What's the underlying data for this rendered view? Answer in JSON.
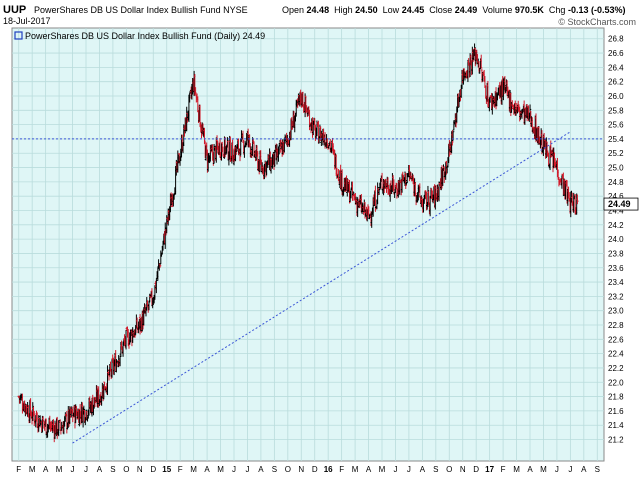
{
  "header": {
    "ticker": "UUP",
    "full_name": "PowerShares DB US Dollar Index Bullish Fund",
    "exchange": "NYSE",
    "date": "18-Jul-2017",
    "open_label": "Open",
    "open": "24.48",
    "high_label": "High",
    "high": "24.50",
    "low_label": "Low",
    "low": "24.45",
    "close_label": "Close",
    "close": "24.49",
    "volume_label": "Volume",
    "volume": "970.5K",
    "chg_label": "Chg",
    "chg": "-0.13 (-0.53%)",
    "logo": "© StockCharts.com"
  },
  "legend": {
    "label": "PowerShares DB US Dollar Index Bullish Fund (Daily) 24.49",
    "swatch_color": "#1f3fbf"
  },
  "colors": {
    "plot_bg": "#dff6f6",
    "grid": "#b9dcdc",
    "up_bar": "#000000",
    "down_bar": "#d11a2a",
    "trend": "#3a55d6",
    "last_tag_bg": "#ffffff"
  },
  "chart_data": {
    "type": "ohlc",
    "title": "PowerShares DB US Dollar Index Bullish Fund (Daily) 24.49",
    "ylim": [
      20.9,
      26.95
    ],
    "y_ticks": [
      "21.2",
      "21.4",
      "21.6",
      "21.8",
      "22.0",
      "22.2",
      "22.4",
      "22.6",
      "22.8",
      "23.0",
      "23.2",
      "23.4",
      "23.6",
      "23.8",
      "24.0",
      "24.2",
      "24.4",
      "24.6",
      "24.8",
      "25.0",
      "25.2",
      "25.4",
      "25.6",
      "25.8",
      "26.0",
      "26.2",
      "26.4",
      "26.6",
      "26.8"
    ],
    "x_labels": [
      "F",
      "M",
      "A",
      "M",
      "J",
      "J",
      "A",
      "S",
      "O",
      "N",
      "D",
      "15",
      "F",
      "M",
      "A",
      "M",
      "J",
      "J",
      "A",
      "S",
      "O",
      "N",
      "D",
      "16",
      "F",
      "M",
      "A",
      "M",
      "J",
      "J",
      "A",
      "S",
      "O",
      "N",
      "D",
      "17",
      "F",
      "M",
      "A",
      "M",
      "J",
      "J",
      "A",
      "S"
    ],
    "bold_x_labels": [
      "15",
      "16",
      "17"
    ],
    "last_value": 24.49,
    "horizontal_line": 25.4,
    "trend_line": {
      "start": {
        "date": "Jun 2014",
        "value": 21.15
      },
      "end": {
        "date": "Jul 2017",
        "value": 25.5
      }
    },
    "price_path": [
      [
        "Feb 2014",
        21.8
      ],
      [
        "Mar 2014",
        21.55
      ],
      [
        "Apr 2014",
        21.4
      ],
      [
        "May 2014",
        21.35
      ],
      [
        "Jun 2014",
        21.55
      ],
      [
        "Jul 2014",
        21.6
      ],
      [
        "Aug 2014",
        21.8
      ],
      [
        "Sep 2014",
        22.2
      ],
      [
        "Oct 2014",
        22.6
      ],
      [
        "Nov 2014",
        22.8
      ],
      [
        "Dec 2014",
        23.2
      ],
      [
        "Jan 2015",
        24.2
      ],
      [
        "Mar 2015",
        26.2
      ],
      [
        "Apr 2015",
        25.1
      ],
      [
        "May 2015",
        25.3
      ],
      [
        "Jun 2015",
        25.2
      ],
      [
        "Jul 2015",
        25.4
      ],
      [
        "Aug 2015",
        25.0
      ],
      [
        "Sep 2015",
        25.1
      ],
      [
        "Oct 2015",
        25.4
      ],
      [
        "Nov 2015",
        26.0
      ],
      [
        "Dec 2015",
        25.5
      ],
      [
        "Jan 2016",
        25.4
      ],
      [
        "Feb 2016",
        24.8
      ],
      [
        "Apr 2016",
        24.3
      ],
      [
        "May 2016",
        24.8
      ],
      [
        "Jun 2016",
        24.7
      ],
      [
        "Jul 2016",
        24.9
      ],
      [
        "Aug 2016",
        24.5
      ],
      [
        "Sep 2016",
        24.6
      ],
      [
        "Oct 2016",
        25.2
      ],
      [
        "Nov 2016",
        26.3
      ],
      [
        "Dec 2016",
        26.6
      ],
      [
        "Jan 2017",
        25.9
      ],
      [
        "Feb 2017",
        26.1
      ],
      [
        "Mar 2017",
        25.8
      ],
      [
        "Apr 2017",
        25.7
      ],
      [
        "May 2017",
        25.3
      ],
      [
        "Jun 2017",
        25.0
      ],
      [
        "Jul 2017",
        24.5
      ]
    ]
  }
}
